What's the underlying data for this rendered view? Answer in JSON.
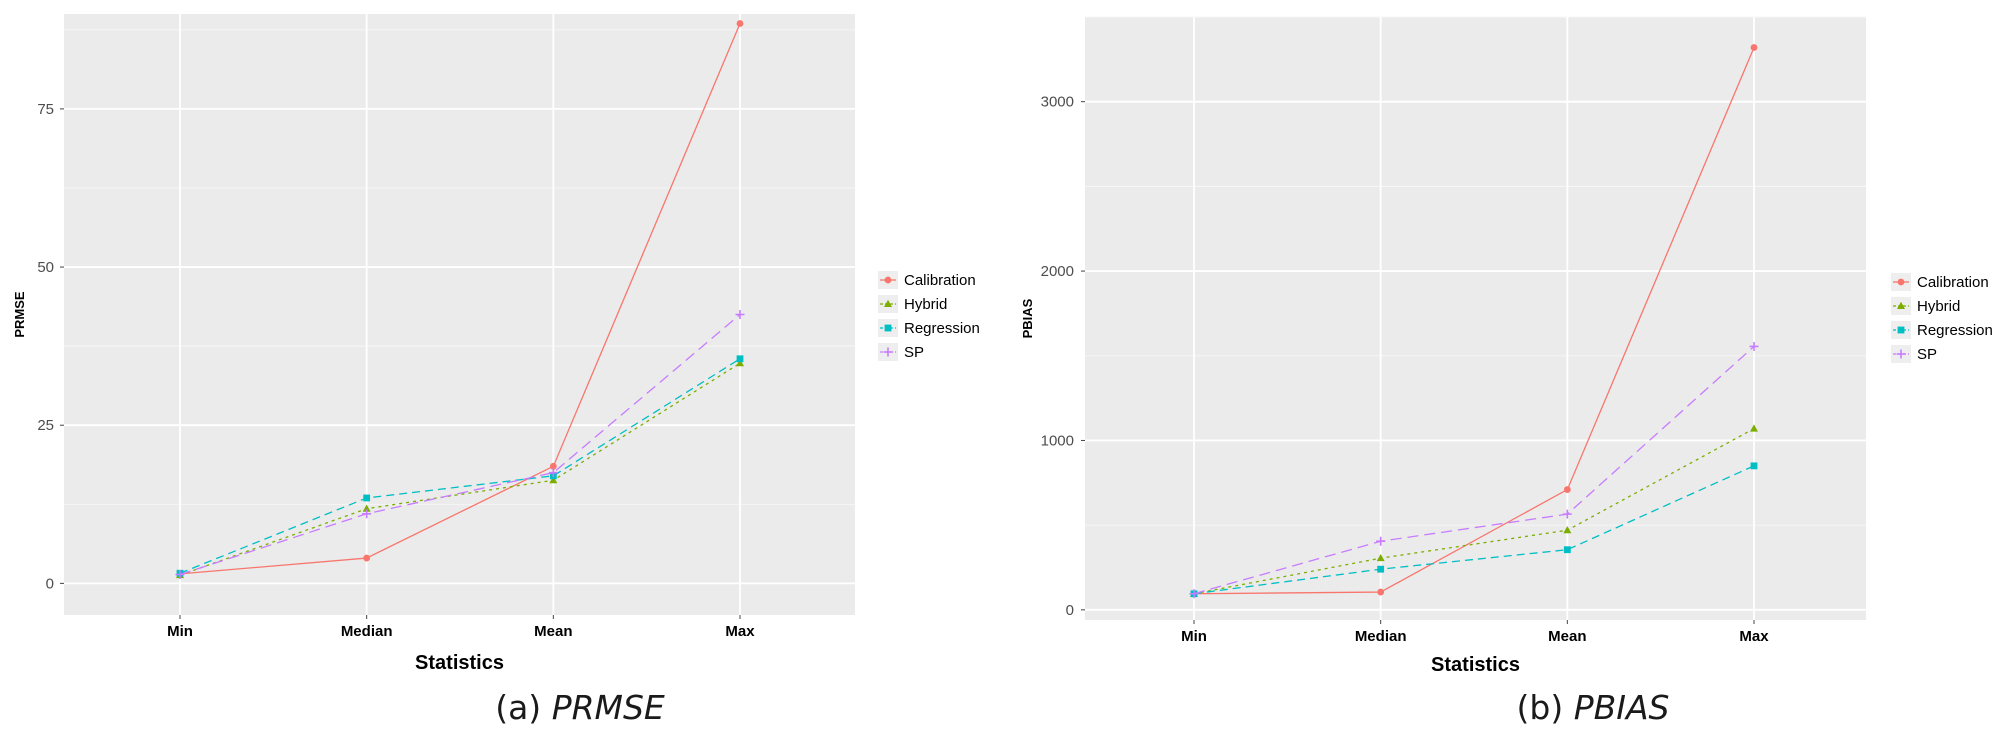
{
  "chart_data": [
    {
      "type": "line",
      "ylabel": "PRMSE",
      "xlabel": "Statistics",
      "categories": [
        "Min",
        "Median",
        "Mean",
        "Max"
      ],
      "ylim": [
        -5,
        90
      ],
      "yticks": [
        0,
        25,
        50,
        75
      ],
      "grid": true,
      "legend_position": "right",
      "caption_letter": "(a)",
      "caption_title": "PRMSE",
      "series": [
        {
          "name": "Calibration",
          "color": "#F8766D",
          "marker": "circle",
          "dash": "solid",
          "values": [
            1.5,
            4,
            18.5,
            88.5
          ]
        },
        {
          "name": "Hybrid",
          "color": "#7CAE00",
          "marker": "triangle",
          "dash": "dotted",
          "values": [
            1.3,
            11.8,
            16.3,
            34.8
          ]
        },
        {
          "name": "Regression",
          "color": "#00BFC4",
          "marker": "square",
          "dash": "dashed",
          "values": [
            1.6,
            13.5,
            17,
            35.5
          ]
        },
        {
          "name": "SP",
          "color": "#C77CFF",
          "marker": "plus",
          "dash": "longdash",
          "values": [
            1.4,
            11,
            17.5,
            42.5
          ]
        }
      ]
    },
    {
      "type": "line",
      "ylabel": "PBIAS",
      "xlabel": "Statistics",
      "categories": [
        "Min",
        "Median",
        "Mean",
        "Max"
      ],
      "ylim": [
        -60,
        3500
      ],
      "yticks": [
        0,
        1000,
        2000,
        3000
      ],
      "grid": true,
      "legend_position": "right",
      "caption_letter": "(b)",
      "caption_title": "PBIAS",
      "series": [
        {
          "name": "Calibration",
          "color": "#F8766D",
          "marker": "circle",
          "dash": "solid",
          "values": [
            95,
            105,
            710,
            3320
          ]
        },
        {
          "name": "Hybrid",
          "color": "#7CAE00",
          "marker": "triangle",
          "dash": "dotted",
          "values": [
            95,
            305,
            470,
            1070
          ]
        },
        {
          "name": "Regression",
          "color": "#00BFC4",
          "marker": "square",
          "dash": "dashed",
          "values": [
            95,
            240,
            355,
            850
          ]
        },
        {
          "name": "SP",
          "color": "#C77CFF",
          "marker": "plus",
          "dash": "longdash",
          "values": [
            95,
            405,
            565,
            1555
          ]
        }
      ]
    }
  ]
}
